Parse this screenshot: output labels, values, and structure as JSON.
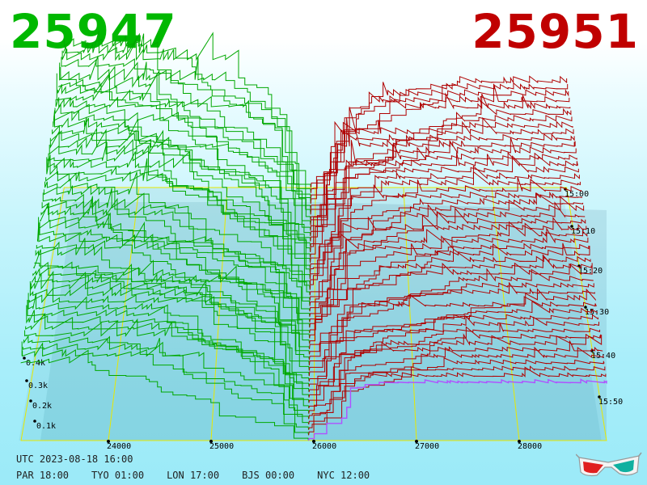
{
  "prices": {
    "bid": "25947",
    "ask": "25951",
    "bid_color": "#00b800",
    "ask_color": "#c00000"
  },
  "footer": {
    "utc": "UTC 2023-08-18 16:00",
    "clocks": [
      "PAR 18:00",
      "TYO 01:00",
      "LON 17:00",
      "BJS 00:00",
      "NYC 12:00"
    ]
  },
  "icons": {
    "glasses": "3d-glasses-icon"
  },
  "chart_data": {
    "type": "area",
    "x_axis": {
      "ticks": [
        24000,
        25000,
        26000,
        27000,
        28000
      ],
      "labels": [
        "24000",
        "25000",
        "26000",
        "27000",
        "28000"
      ]
    },
    "volume_axis": {
      "ticks": [
        0.1,
        0.2,
        0.3,
        0.4
      ],
      "labels": [
        "0.1k",
        "0.2k",
        "0.3k",
        "0.4k"
      ]
    },
    "time_axis": {
      "labels": [
        "15:00",
        "15:10",
        "15:20",
        "15:30",
        "15:40",
        "15:50"
      ]
    },
    "mid_price": 25949,
    "series": [
      {
        "name": "",
        "side": "bid",
        "color": "#00a800"
      },
      {
        "name": "",
        "side": "ask",
        "color": "#b00000"
      }
    ],
    "grid": true
  }
}
